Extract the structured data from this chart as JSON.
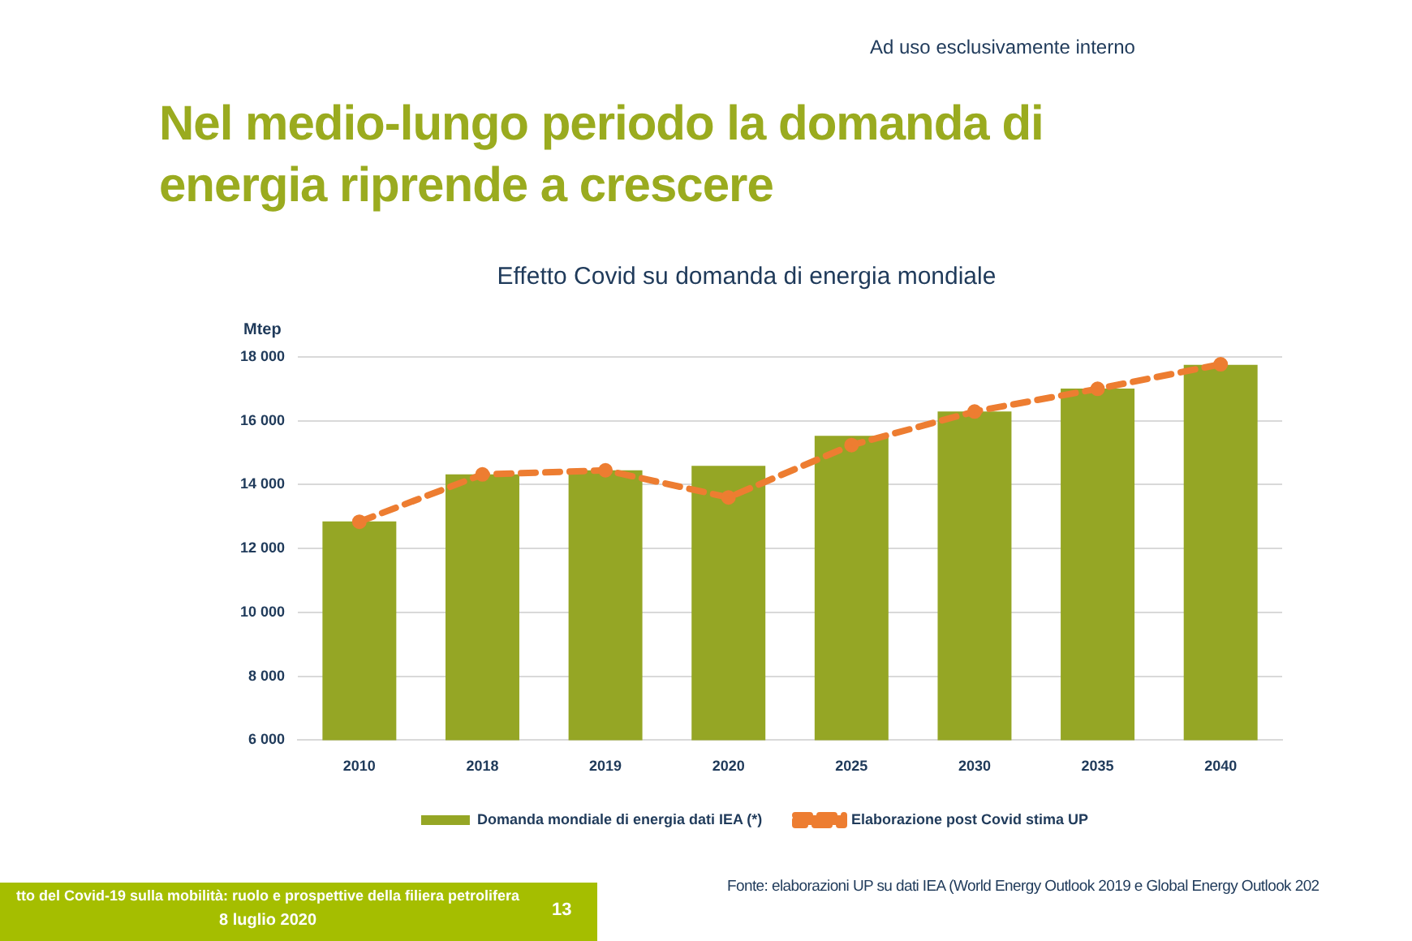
{
  "chart_data": {
    "type": "bar",
    "title": "Nel medio-lungo periodo la domanda di energia riprende a crescere",
    "subtitle": "Effetto Covid su domanda di energia mondiale",
    "ylabel": "Mtep",
    "categories": [
      "2010",
      "2018",
      "2019",
      "2020",
      "2025",
      "2030",
      "2035",
      "2040"
    ],
    "series": [
      {
        "name": "Domanda mondiale di energia dati IEA (*)",
        "color": "#95a625",
        "values": [
          12850,
          14320,
          14450,
          14590,
          15530,
          16290,
          17010,
          17750
        ]
      },
      {
        "name": "Elaborazione post Covid stima UP",
        "type": "line",
        "color": "#ed7d31",
        "line_style": "dashed",
        "marker": "circle",
        "values": [
          12840,
          14320,
          14450,
          13600,
          15240,
          16290,
          17000,
          17770
        ]
      }
    ],
    "ylim": [
      6000,
      18000
    ],
    "yticks": [
      {
        "value": 6000,
        "label": "6 000"
      },
      {
        "value": 8000,
        "label": "8 000"
      },
      {
        "value": 10000,
        "label": "10 000"
      },
      {
        "value": 12000,
        "label": "12 000"
      },
      {
        "value": 14000,
        "label": "14 000"
      },
      {
        "value": 16000,
        "label": "16 000"
      },
      {
        "value": 18000,
        "label": "18 000"
      }
    ],
    "grid": "y",
    "legend": "bottom",
    "annotations": [
      "Ad uso esclusivamente interno",
      "tto del Covid-19 sulla mobilità: ruolo e prospettive della filiera petrolifera",
      "8 luglio 2020",
      "13",
      "Fonte: elaborazioni UP su dati IEA (World Energy Outlook 2019 e  Global Energy Outlook 202"
    ]
  }
}
